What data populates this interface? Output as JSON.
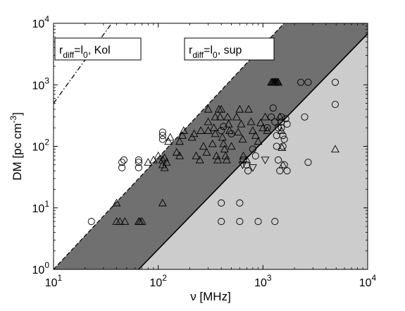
{
  "chart_data": {
    "type": "scatter",
    "xscale": "log",
    "yscale": "log",
    "xlim": [
      10,
      10000
    ],
    "ylim": [
      1,
      10000
    ],
    "xlabel": "ν [MHz]",
    "ylabel": "DM [pc cm^-3]",
    "x_ticks": [
      {
        "value": 10,
        "base": "10",
        "exp": "1"
      },
      {
        "value": 100,
        "base": "10",
        "exp": "2"
      },
      {
        "value": 1000,
        "base": "10",
        "exp": "3"
      },
      {
        "value": 10000,
        "base": "10",
        "exp": "4"
      }
    ],
    "y_ticks": [
      {
        "value": 1,
        "base": "10",
        "exp": "0"
      },
      {
        "value": 10,
        "base": "10",
        "exp": "1"
      },
      {
        "value": 100,
        "base": "10",
        "exp": "2"
      },
      {
        "value": 1000,
        "base": "10",
        "exp": "3"
      },
      {
        "value": 10000,
        "base": "10",
        "exp": "4"
      }
    ],
    "grid": false,
    "colors": {
      "dark_region": "#707070",
      "light_region": "#cccccc",
      "background": "#ffffff",
      "marker": "#000000"
    },
    "regions": {
      "light_boundary_line": {
        "x": [
          65,
          12500
        ],
        "y": [
          1,
          10000
        ]
      },
      "dark_left_dashed_line": {
        "x": [
          10,
          1590
        ],
        "y": [
          1,
          10000
        ]
      },
      "kol_dashdot_line": {
        "x": [
          10,
          36
        ],
        "y": [
          500,
          10000
        ]
      }
    },
    "annotations": [
      {
        "id": "kol",
        "main": "r",
        "sub": "diff",
        "mid": "=l",
        "sub2": "0",
        "tail": ", Kol"
      },
      {
        "id": "sup",
        "main": "r",
        "sub": "diff",
        "mid": "=l",
        "sub2": "0",
        "tail": ", sup"
      }
    ],
    "series": [
      {
        "marker": "circle",
        "points": [
          [
            23,
            6
          ],
          [
            45,
            45
          ],
          [
            45,
            55
          ],
          [
            47,
            60
          ],
          [
            65,
            45
          ],
          [
            65,
            55
          ],
          [
            65,
            60
          ],
          [
            110,
            130
          ],
          [
            110,
            150
          ],
          [
            110,
            170
          ],
          [
            400,
            6
          ],
          [
            400,
            12
          ],
          [
            600,
            6
          ],
          [
            600,
            12
          ],
          [
            900,
            6
          ],
          [
            1300,
            6
          ],
          [
            400,
            180
          ],
          [
            420,
            210
          ],
          [
            500,
            160
          ],
          [
            650,
            60
          ],
          [
            700,
            50
          ],
          [
            720,
            40
          ],
          [
            800,
            90
          ],
          [
            850,
            70
          ],
          [
            1100,
            200
          ],
          [
            1200,
            300
          ],
          [
            1250,
            420
          ],
          [
            1300,
            250
          ],
          [
            1350,
            150
          ],
          [
            1350,
            100
          ],
          [
            1400,
            200
          ],
          [
            1400,
            60
          ],
          [
            1450,
            40
          ],
          [
            1500,
            300
          ],
          [
            1500,
            250
          ],
          [
            1500,
            200
          ],
          [
            1550,
            150
          ],
          [
            1550,
            100
          ],
          [
            1600,
            130
          ],
          [
            1600,
            50
          ],
          [
            1650,
            280
          ],
          [
            1700,
            230
          ],
          [
            1700,
            40
          ],
          [
            2300,
            1100
          ],
          [
            2500,
            300
          ],
          [
            2700,
            55
          ],
          [
            2700,
            1100
          ],
          [
            4900,
            1100
          ],
          [
            4900,
            480
          ]
        ]
      },
      {
        "marker": "triangle-up",
        "points": [
          [
            40,
            6
          ],
          [
            40,
            12
          ],
          [
            43,
            6
          ],
          [
            48,
            6
          ],
          [
            65,
            6
          ],
          [
            67,
            6
          ],
          [
            70,
            6
          ],
          [
            110,
            12
          ],
          [
            110,
            50
          ],
          [
            110,
            60
          ],
          [
            115,
            45
          ],
          [
            115,
            65
          ],
          [
            120,
            55
          ],
          [
            80,
            55
          ],
          [
            90,
            60
          ],
          [
            100,
            70
          ],
          [
            125,
            120
          ],
          [
            130,
            140
          ],
          [
            150,
            80
          ],
          [
            160,
            70
          ],
          [
            160,
            120
          ],
          [
            170,
            150
          ],
          [
            175,
            180
          ],
          [
            210,
            140
          ],
          [
            220,
            160
          ],
          [
            230,
            70
          ],
          [
            250,
            60
          ],
          [
            255,
            180
          ],
          [
            270,
            100
          ],
          [
            290,
            80
          ],
          [
            300,
            400
          ],
          [
            300,
            250
          ],
          [
            300,
            180
          ],
          [
            330,
            110
          ],
          [
            340,
            200
          ],
          [
            350,
            300
          ],
          [
            350,
            160
          ],
          [
            360,
            70
          ],
          [
            370,
            60
          ],
          [
            380,
            400
          ],
          [
            390,
            300
          ],
          [
            400,
            400
          ],
          [
            410,
            140
          ],
          [
            420,
            110
          ],
          [
            430,
            90
          ],
          [
            440,
            70
          ],
          [
            450,
            60
          ],
          [
            460,
            300
          ],
          [
            470,
            230
          ],
          [
            480,
            180
          ],
          [
            500,
            100
          ],
          [
            560,
            300
          ],
          [
            580,
            170
          ],
          [
            600,
            400
          ],
          [
            620,
            230
          ],
          [
            640,
            130
          ],
          [
            650,
            70
          ],
          [
            700,
            60
          ],
          [
            730,
            400
          ],
          [
            770,
            250
          ],
          [
            800,
            180
          ],
          [
            850,
            150
          ],
          [
            900,
            120
          ],
          [
            950,
            240
          ],
          [
            1000,
            200
          ],
          [
            1050,
            300
          ],
          [
            1100,
            180
          ],
          [
            1200,
            1100
          ],
          [
            1230,
            1100
          ],
          [
            1250,
            1100
          ],
          [
            1280,
            1100
          ],
          [
            1300,
            1100
          ],
          [
            1320,
            1100
          ],
          [
            1350,
            1100
          ],
          [
            1380,
            1100
          ],
          [
            1400,
            1100
          ],
          [
            1450,
            300
          ],
          [
            1500,
            180
          ],
          [
            1520,
            95
          ],
          [
            1550,
            50
          ],
          [
            4900,
            90
          ]
        ]
      },
      {
        "marker": "triangle-down",
        "points": [
          [
            640,
            50
          ],
          [
            800,
            45
          ],
          [
            1050,
            60
          ]
        ]
      }
    ]
  }
}
